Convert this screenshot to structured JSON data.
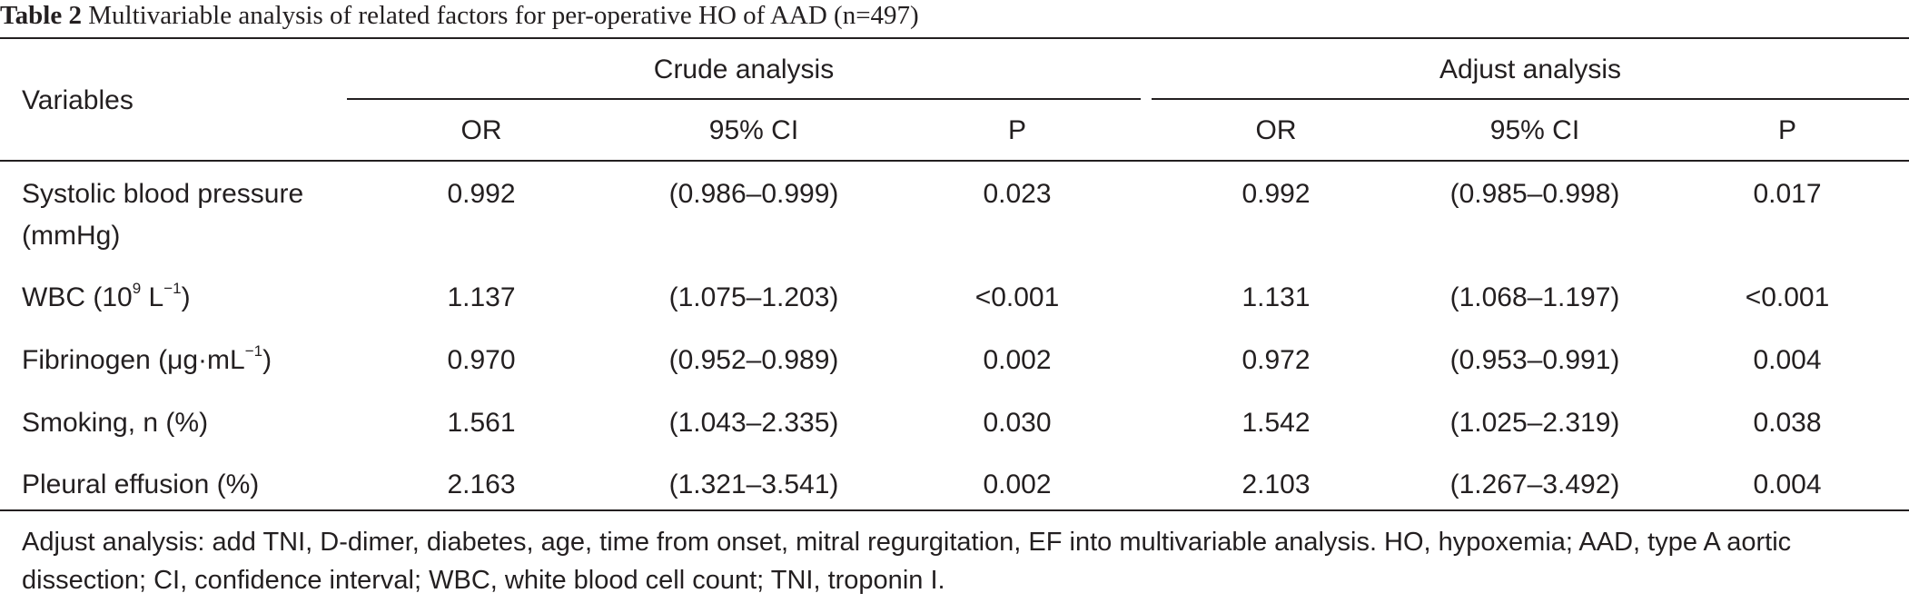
{
  "caption": {
    "label": "Table 2",
    "text": "Multivariable analysis of related factors for per-operative HO of AAD (n=497)"
  },
  "header": {
    "variables": "Variables",
    "group_crude": "Crude analysis",
    "group_adjust": "Adjust analysis",
    "or": "OR",
    "ci": "95% CI",
    "p": "P"
  },
  "rows": [
    {
      "label_line1": "Systolic blood pressure",
      "label_line2": "(mmHg)",
      "crude_or": "0.992",
      "crude_ci": "(0.986–0.999)",
      "crude_p": "0.023",
      "adj_or": "0.992",
      "adj_ci": "(0.985–0.998)",
      "adj_p": "0.017"
    },
    {
      "label_prefix": "WBC (10",
      "label_sup1": "9",
      "label_mid": " L",
      "label_sup2": "−1",
      "label_suffix": ")",
      "crude_or": "1.137",
      "crude_ci": "(1.075–1.203)",
      "crude_p": "<0.001",
      "adj_or": "1.131",
      "adj_ci": "(1.068–1.197)",
      "adj_p": "<0.001"
    },
    {
      "label_prefix": "Fibrinogen (μg·mL",
      "label_sup": "−1",
      "label_suffix": ")",
      "crude_or": "0.970",
      "crude_ci": "(0.952–0.989)",
      "crude_p": "0.002",
      "adj_or": "0.972",
      "adj_ci": "(0.953–0.991)",
      "adj_p": "0.004"
    },
    {
      "label": "Smoking, n (%)",
      "crude_or": "1.561",
      "crude_ci": "(1.043–2.335)",
      "crude_p": "0.030",
      "adj_or": "1.542",
      "adj_ci": "(1.025–2.319)",
      "adj_p": "0.038"
    },
    {
      "label": "Pleural effusion (%)",
      "crude_or": "2.163",
      "crude_ci": "(1.321–3.541)",
      "crude_p": "0.002",
      "adj_or": "2.103",
      "adj_ci": "(1.267–3.492)",
      "adj_p": "0.004"
    }
  ],
  "footnote": "Adjust analysis: add TNI, D-dimer, diabetes, age, time from onset, mitral regurgitation, EF into multivariable analysis. HO, hypoxemia; AAD, type A aortic dissection; CI, confidence interval; WBC, white blood cell count; TNI, troponin I."
}
